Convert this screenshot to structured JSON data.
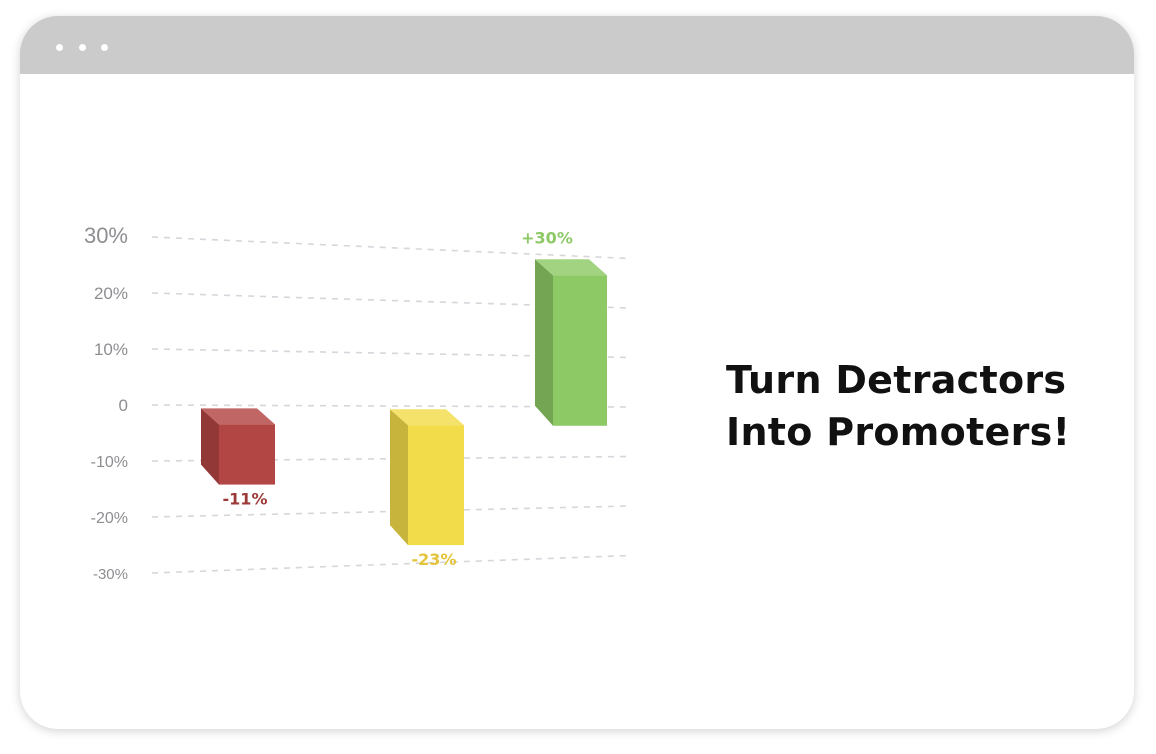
{
  "window": {
    "titlebar_color": "#cbcbcb",
    "controls": [
      "dot",
      "dot",
      "dot"
    ]
  },
  "headline": {
    "line1": "Turn Detractors",
    "line2": "Into Promoters!"
  },
  "chart_data": {
    "type": "bar",
    "style": "3d-floating",
    "categories": [
      "",
      "",
      ""
    ],
    "values": [
      -11,
      -23,
      30
    ],
    "data_labels": [
      "-11%",
      "-23%",
      "+30%"
    ],
    "colors": [
      "#b24644",
      "#f2dc4a",
      "#8dc965"
    ],
    "y_ticks": [
      {
        "value": 30,
        "label": "30%"
      },
      {
        "value": 20,
        "label": "20%"
      },
      {
        "value": 10,
        "label": "10%"
      },
      {
        "value": 0,
        "label": "0"
      },
      {
        "value": -10,
        "label": "-10%"
      },
      {
        "value": -20,
        "label": "-20%"
      },
      {
        "value": -30,
        "label": "-30%"
      }
    ],
    "ylim": [
      -30,
      30
    ],
    "grid": true,
    "grid_style": "dashed",
    "legend": "none"
  }
}
